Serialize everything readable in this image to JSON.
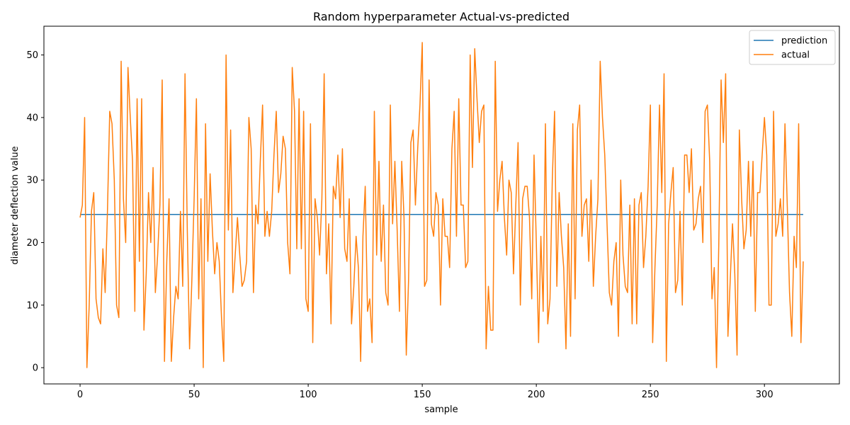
{
  "chart_data": {
    "type": "line",
    "title": "Random hyperparameter Actual-vs-predicted",
    "xlabel": "sample",
    "ylabel": "diameter deflection value",
    "xlim": [
      -15.85,
      332.85
    ],
    "ylim": [
      -2.6,
      54.6
    ],
    "xticks": [
      0,
      50,
      100,
      150,
      200,
      250,
      300
    ],
    "yticks": [
      0,
      10,
      20,
      30,
      40,
      50
    ],
    "grid": false,
    "legend_position": "top-right",
    "series": [
      {
        "name": "prediction",
        "color": "#1f77b4",
        "x": [
          0,
          317
        ],
        "y": [
          24.5,
          24.5
        ]
      },
      {
        "name": "actual",
        "color": "#ff7f0e",
        "x_start": 0,
        "x_step": 1,
        "y": [
          24,
          26,
          40,
          0,
          10,
          25,
          28,
          11,
          8,
          7,
          19,
          12,
          25,
          41,
          39,
          30,
          10,
          8,
          49,
          27,
          20,
          48,
          40,
          33,
          9,
          43,
          17,
          43,
          6,
          15,
          28,
          20,
          32,
          12,
          18,
          26,
          46,
          1,
          17,
          27,
          1,
          8,
          13,
          11,
          25,
          13,
          47,
          22,
          3,
          14,
          27,
          43,
          11,
          27,
          0,
          39,
          17,
          31,
          22,
          15,
          20,
          17,
          8,
          1,
          50,
          22,
          38,
          12,
          18,
          24,
          18,
          13,
          14,
          17,
          40,
          35,
          12,
          26,
          23,
          33,
          42,
          21,
          25,
          21,
          25,
          34,
          41,
          28,
          31,
          37,
          35,
          20,
          15,
          48,
          41,
          19,
          43,
          19,
          41,
          11,
          9,
          39,
          4,
          27,
          24,
          18,
          27,
          47,
          15,
          23,
          7,
          29,
          27,
          34,
          24,
          35,
          19,
          17,
          27,
          7,
          13,
          21,
          16,
          1,
          21,
          29,
          9,
          11,
          4,
          41,
          18,
          33,
          17,
          26,
          12,
          10,
          42,
          23,
          33,
          22,
          9,
          33,
          24,
          2,
          14,
          36,
          38,
          26,
          35,
          42,
          52,
          13,
          14,
          46,
          23,
          21,
          28,
          26,
          10,
          27,
          21,
          21,
          16,
          35,
          41,
          21,
          43,
          26,
          26,
          16,
          17,
          50,
          32,
          51,
          43,
          36,
          41,
          42,
          3,
          13,
          6,
          6,
          49,
          25,
          30,
          33,
          24,
          18,
          30,
          28,
          15,
          26,
          36,
          10,
          27,
          29,
          29,
          24,
          11,
          34,
          20,
          4,
          21,
          9,
          39,
          7,
          11,
          30,
          41,
          13,
          28,
          21,
          16,
          3,
          23,
          5,
          39,
          11,
          38,
          42,
          21,
          26,
          27,
          17,
          30,
          13,
          21,
          27,
          49,
          40,
          34,
          23,
          12,
          10,
          17,
          20,
          5,
          30,
          18,
          13,
          12,
          26,
          7,
          27,
          7,
          26,
          28,
          16,
          21,
          29,
          42,
          4,
          16,
          26,
          42,
          28,
          47,
          1,
          23,
          28,
          32,
          12,
          14,
          25,
          10,
          34,
          34,
          28,
          35,
          22,
          23,
          27,
          29,
          20,
          41,
          42,
          33,
          11,
          16,
          0,
          20,
          46,
          36,
          47,
          5,
          14,
          23,
          15,
          2,
          38,
          27,
          19,
          22,
          33,
          21,
          33,
          9,
          28,
          28,
          34,
          40,
          34,
          10,
          10,
          41,
          21,
          23,
          27,
          21,
          39,
          26,
          12,
          5,
          21,
          16,
          39,
          4,
          17
        ]
      }
    ]
  }
}
